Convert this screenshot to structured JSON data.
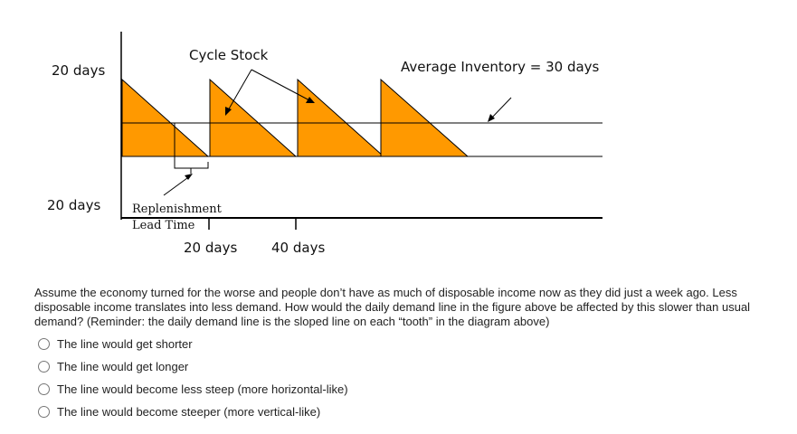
{
  "diagram": {
    "cycle_stock_label": "Cycle Stock",
    "avg_inventory_label": "Average Inventory = 30 days",
    "y_top_label": "20 days",
    "y_bottom_label": "20 days",
    "replenishment_label": "Replenishment",
    "lead_time_label": "Lead Time",
    "x_tick_1": "20 days",
    "x_tick_2": "40 days",
    "colors": {
      "fill": "#ff9900",
      "line": "#000000"
    }
  },
  "question": {
    "text": "Assume the economy turned for the worse and people don’t have as much of disposable income now as they did just a week ago. Less disposable income translates into less demand. How would the daily demand line in the figure above be affected by this slower than usual demand? (Reminder: the daily demand line is the sloped line on each “tooth” in the diagram above)",
    "options": [
      "The line would get shorter",
      "The line would get longer",
      "The line would become less steep (more horizontal-like)",
      "The line would become steeper (more vertical-like)"
    ]
  }
}
